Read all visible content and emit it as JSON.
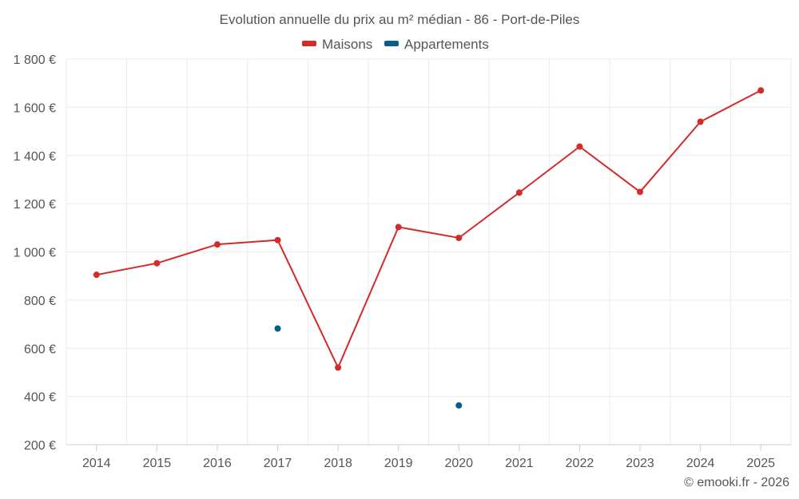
{
  "chart_data": {
    "type": "line",
    "title": "Evolution annuelle du prix au m² médian - 86 - Port-de-Piles",
    "categories": [
      "2014",
      "2015",
      "2016",
      "2017",
      "2018",
      "2019",
      "2020",
      "2021",
      "2022",
      "2023",
      "2024",
      "2025"
    ],
    "ylim": [
      200,
      1800
    ],
    "yticks": [
      200,
      400,
      600,
      800,
      1000,
      1200,
      1400,
      1600,
      1800
    ],
    "ytick_labels": [
      "200 €",
      "400 €",
      "600 €",
      "800 €",
      "1 000 €",
      "1 200 €",
      "1 400 €",
      "1 600 €",
      "1 800 €"
    ],
    "grid": true,
    "legend_position": "top-center",
    "series": [
      {
        "name": "Maisons",
        "color": "#d42a2a",
        "values": [
          905,
          953,
          1031,
          1049,
          520,
          1103,
          1058,
          1246,
          1437,
          1249,
          1540,
          1670
        ]
      },
      {
        "name": "Appartements",
        "color": "#0b5c8e",
        "values": [
          null,
          null,
          null,
          682,
          null,
          null,
          363,
          null,
          null,
          null,
          null,
          null
        ]
      }
    ]
  },
  "credit": "© emooki.fr - 2026"
}
